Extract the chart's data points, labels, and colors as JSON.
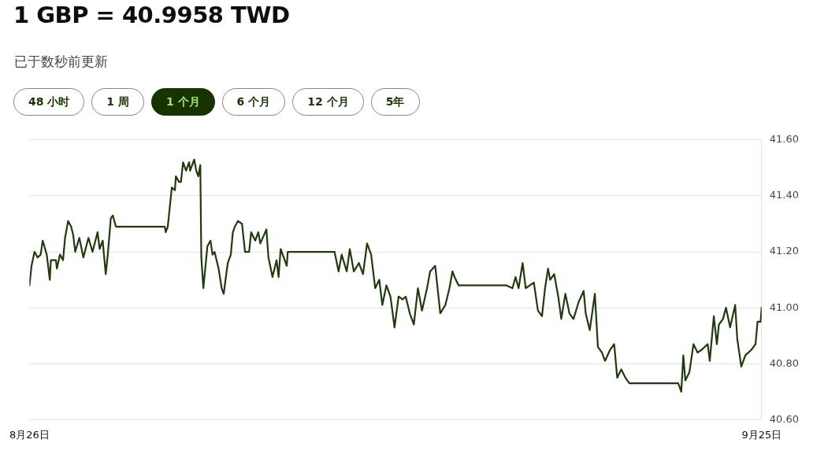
{
  "chart_data": {
    "type": "line",
    "title": "1 GBP = 40.9958 TWD",
    "subtitle": "已于数秒前更新",
    "annotations": [
      "48 小时",
      "1 周",
      "1 个月",
      "6 个月",
      "12 个月",
      "5年"
    ],
    "xlim": [
      "--08-26T00:00",
      "--09-25T00:00"
    ],
    "xticks": [
      {
        "value": "--08-26T00:00",
        "label": "8月26日"
      },
      {
        "value": "--09-25T00:00",
        "label": "9月25日"
      }
    ],
    "ylim": [
      40.6,
      41.6
    ],
    "yticks": [
      {
        "value": 40.6,
        "label": "40.60"
      },
      {
        "value": 40.8,
        "label": "40.80"
      },
      {
        "value": 41.0,
        "label": "41.00"
      },
      {
        "value": 41.2,
        "label": "41.20"
      },
      {
        "value": 41.4,
        "label": "41.40"
      },
      {
        "value": 41.6,
        "label": "41.60"
      }
    ],
    "grid": "y",
    "legend": false,
    "marker": "none",
    "line_style": "solid",
    "series": [
      {
        "color": "#1f3a0c",
        "x": [
          "--08-26T00:00",
          "--08-26T02:00",
          "--08-26T05:00",
          "--08-26T08:00",
          "--08-26T11:00",
          "--08-26T13:00",
          "--08-26T17:00",
          "--08-26T20:00",
          "--08-26T21:00",
          "--08-27T02:00",
          "--08-27T03:00",
          "--08-27T06:00",
          "--08-27T09:00",
          "--08-27T11:00",
          "--08-27T14:00",
          "--08-27T17:00",
          "--08-27T19:00",
          "--08-27T21:00",
          "--08-28T01:00",
          "--08-28T05:00",
          "--08-28T10:00",
          "--08-28T14:00",
          "--08-28T19:00",
          "--08-28T21:00",
          "--08-29T00:00",
          "--08-29T03:00",
          "--08-29T05:00",
          "--08-29T08:00",
          "--08-29T10:00",
          "--08-29T13:00",
          "--08-31T13:00",
          "--08-31T14:00",
          "--08-31T16:00",
          "--08-31T20:00",
          "--08-31T23:00",
          "--09-01T00:00",
          "--09-01T03:00",
          "--09-01T05:00",
          "--09-01T07:00",
          "--09-01T10:00",
          "--09-01T13:00",
          "--09-01T14:00",
          "--09-01T18:00",
          "--09-01T20:00",
          "--09-01T22:00",
          "--09-02T00:00",
          "--09-02T01:00",
          "--09-02T03:00",
          "--09-02T07:00",
          "--09-02T10:00",
          "--09-02T12:00",
          "--09-02T14:00",
          "--09-02T18:00",
          "--09-02T21:00",
          "--09-02T23:00",
          "--09-03T03:00",
          "--09-03T06:00",
          "--09-03T08:00",
          "--09-03T10:00",
          "--09-03T13:00",
          "--09-03T17:00",
          "--09-03T20:00",
          "--09-04T00:00",
          "--09-04T02:00",
          "--09-04T06:00",
          "--09-04T09:00",
          "--09-04T11:00",
          "--09-04T17:00",
          "--09-04T19:00",
          "--09-04T23:00",
          "--09-05T03:00",
          "--09-05T05:00",
          "--09-05T07:00",
          "--09-05T13:00",
          "--09-05T14:00",
          "--09-07T12:00",
          "--09-07T16:00",
          "--09-07T19:00",
          "--09-08T00:00",
          "--09-08T03:00",
          "--09-08T07:00",
          "--09-08T12:00",
          "--09-08T16:00",
          "--09-08T20:00",
          "--09-09T00:00",
          "--09-09T04:00",
          "--09-09T08:00",
          "--09-09T11:00",
          "--09-09T15:00",
          "--09-09T19:00",
          "--09-09T23:00",
          "--09-10T03:00",
          "--09-10T07:00",
          "--09-10T10:00",
          "--09-10T14:00",
          "--09-10T18:00",
          "--09-10T22:00",
          "--09-11T02:00",
          "--09-11T07:00",
          "--09-11T10:00",
          "--09-11T15:00",
          "--09-11T20:00",
          "--09-12T01:00",
          "--09-12T05:00",
          "--09-12T08:00",
          "--09-12T10:00",
          "--09-12T14:00",
          "--09-14T13:00",
          "--09-14T19:00",
          "--09-14T22:00",
          "--09-15T01:00",
          "--09-15T05:00",
          "--09-15T08:00",
          "--09-15T16:00",
          "--09-15T20:00",
          "--09-16T00:00",
          "--09-16T03:00",
          "--09-16T06:00",
          "--09-16T08:00",
          "--09-16T12:00",
          "--09-16T16:00",
          "--09-16T19:00",
          "--09-16T23:00",
          "--09-17T03:00",
          "--09-17T07:00",
          "--09-17T12:00",
          "--09-17T17:00",
          "--09-17T19:00",
          "--09-17T23:00",
          "--09-18T04:00",
          "--09-18T07:00",
          "--09-18T11:00",
          "--09-18T14:00",
          "--09-18T19:00",
          "--09-18T23:00",
          "--09-19T02:00",
          "--09-19T06:00",
          "--09-19T10:00",
          "--09-19T14:00",
          "--09-21T14:00",
          "--09-21T17:00",
          "--09-21T19:00",
          "--09-21T21:00",
          "--09-22T01:00",
          "--09-22T05:00",
          "--09-22T09:00",
          "--09-22T13:00",
          "--09-22T19:00",
          "--09-22T21:00",
          "--09-23T01:00",
          "--09-23T04:00",
          "--09-23T06:00",
          "--09-23T10:00",
          "--09-23T13:00",
          "--09-23T17:00",
          "--09-23T22:00",
          "--09-24T00:00",
          "--09-24T04:00",
          "--09-24T08:00",
          "--09-24T14:00",
          "--09-24T18:00",
          "--09-24T20:00",
          "--09-24T23:00",
          "--09-25T00:00"
        ],
        "values": [
          41.08,
          41.15,
          41.2,
          41.18,
          41.19,
          41.24,
          41.19,
          41.1,
          41.17,
          41.17,
          41.14,
          41.19,
          41.17,
          41.25,
          41.31,
          41.29,
          41.26,
          41.2,
          41.25,
          41.18,
          41.25,
          41.2,
          41.27,
          41.21,
          41.24,
          41.12,
          41.19,
          41.32,
          41.33,
          41.29,
          41.29,
          41.27,
          41.29,
          41.43,
          41.42,
          41.47,
          41.45,
          41.45,
          41.52,
          41.49,
          41.52,
          41.49,
          41.53,
          41.49,
          41.47,
          41.51,
          41.18,
          41.07,
          41.22,
          41.24,
          41.19,
          41.2,
          41.14,
          41.07,
          41.05,
          41.16,
          41.19,
          41.27,
          41.29,
          41.31,
          41.3,
          41.2,
          41.2,
          41.27,
          41.24,
          41.27,
          41.23,
          41.28,
          41.18,
          41.11,
          41.17,
          41.11,
          41.21,
          41.15,
          41.2,
          41.2,
          41.13,
          41.19,
          41.13,
          41.21,
          41.13,
          41.16,
          41.12,
          41.23,
          41.19,
          41.07,
          41.1,
          41.01,
          41.08,
          41.04,
          40.93,
          41.04,
          41.03,
          41.04,
          40.98,
          40.94,
          41.07,
          40.99,
          41.07,
          41.13,
          41.15,
          40.98,
          41.01,
          41.07,
          41.13,
          41.11,
          41.08,
          41.08,
          41.07,
          41.11,
          41.07,
          41.16,
          41.07,
          41.09,
          40.99,
          40.97,
          41.07,
          41.14,
          41.1,
          41.12,
          41.04,
          40.96,
          41.05,
          40.98,
          40.96,
          41.02,
          41.06,
          40.98,
          40.92,
          41.05,
          40.86,
          40.84,
          40.81,
          40.85,
          40.87,
          40.75,
          40.78,
          40.75,
          40.73,
          40.73,
          40.7,
          40.83,
          40.74,
          40.77,
          40.87,
          40.84,
          40.85,
          40.87,
          40.81,
          40.97,
          40.87,
          40.94,
          40.96,
          41.0,
          40.93,
          41.01,
          40.89,
          40.79,
          40.83,
          40.85,
          40.87,
          40.95,
          40.95,
          41.0
        ]
      }
    ]
  }
}
